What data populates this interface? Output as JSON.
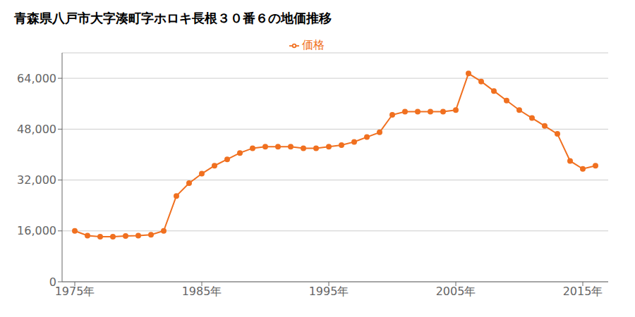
{
  "chart_data": {
    "type": "line",
    "title": "青森県八戸市大字湊町字ホロキ長根３０番６の地価推移",
    "x": [
      1975,
      1976,
      1977,
      1978,
      1979,
      1980,
      1981,
      1982,
      1983,
      1984,
      1985,
      1986,
      1987,
      1988,
      1989,
      1990,
      1991,
      1992,
      1993,
      1994,
      1995,
      1996,
      1997,
      1998,
      1999,
      2000,
      2001,
      2002,
      2003,
      2004,
      2005,
      2006,
      2007,
      2008,
      2009,
      2010,
      2011,
      2012,
      2013,
      2014,
      2015,
      2016
    ],
    "series": [
      {
        "name": "価格",
        "color": "#f07020",
        "marker": "circle",
        "values": [
          16000,
          14500,
          14200,
          14200,
          14400,
          14500,
          14800,
          16000,
          27000,
          31000,
          34000,
          36500,
          38500,
          40500,
          42000,
          42500,
          42500,
          42500,
          42000,
          42000,
          42500,
          43000,
          44000,
          45500,
          47000,
          52500,
          53500,
          53500,
          53500,
          53500,
          54000,
          65500,
          63000,
          60000,
          57000,
          54000,
          51500,
          49000,
          46500,
          38000,
          35500,
          36500
        ]
      }
    ],
    "xlim": [
      1974,
      2017
    ],
    "xticks": [
      {
        "value": 1975,
        "label": "1975年"
      },
      {
        "value": 1985,
        "label": "1985年"
      },
      {
        "value": 1995,
        "label": "1995年"
      },
      {
        "value": 2005,
        "label": "2005年"
      },
      {
        "value": 2015,
        "label": "2015年"
      }
    ],
    "ylim": [
      0,
      72000
    ],
    "yticks": [
      0,
      {
        "value": 16000,
        "label": "16,000"
      },
      {
        "value": 32000,
        "label": "32,000"
      },
      {
        "value": 48000,
        "label": "48,000"
      },
      {
        "value": 64000,
        "label": "64,000"
      }
    ],
    "grid": true,
    "legend": "top"
  }
}
